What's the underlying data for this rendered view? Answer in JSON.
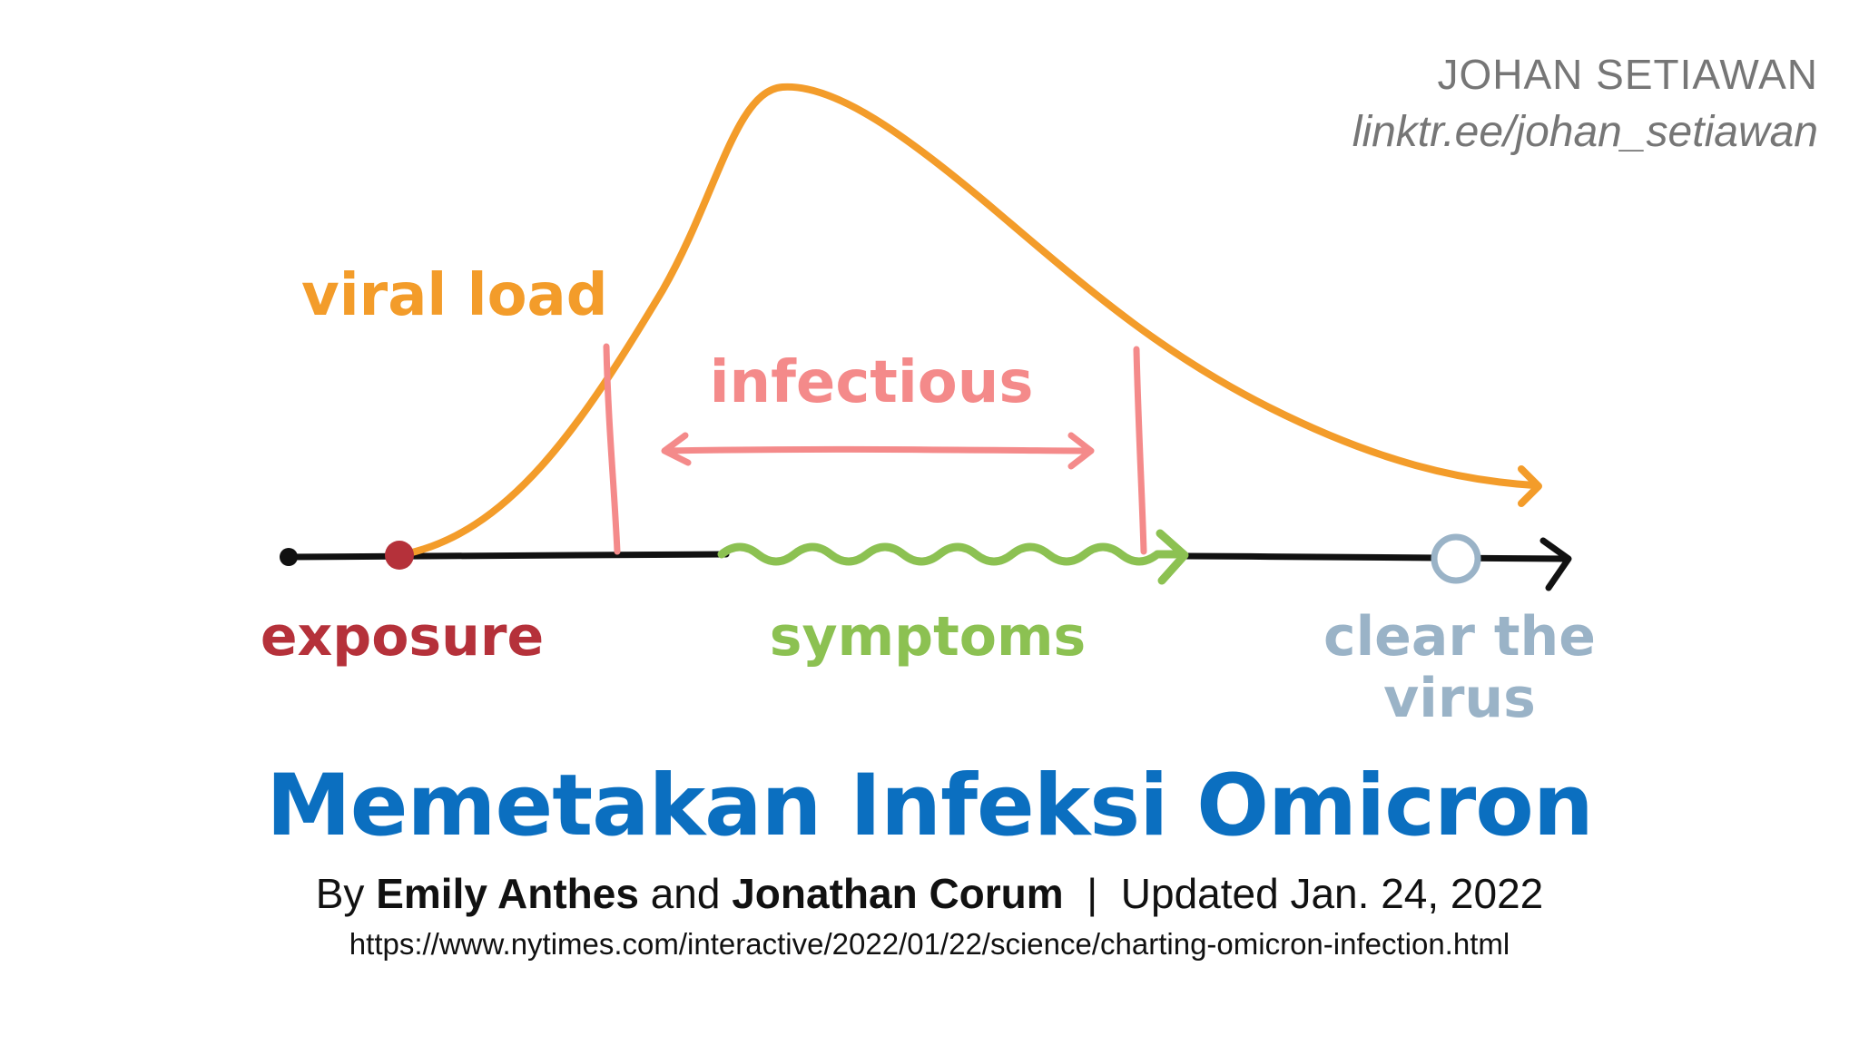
{
  "credit": {
    "name": "JOHAN SETIAWAN",
    "link": "linktr.ee/johan_setiawan"
  },
  "diagram": {
    "labels": {
      "viral_load": "viral load",
      "infectious": "infectious",
      "exposure": "exposure",
      "symptoms": "symptoms",
      "clear_line1": "clear the",
      "clear_line2": "virus"
    },
    "colors": {
      "viral_load": "#f39c2a",
      "infectious": "#f48a8a",
      "exposure": "#b5313a",
      "symptoms": "#8cc152",
      "clear": "#9ab3c7",
      "timeline": "#111111"
    }
  },
  "title": "Memetakan Infeksi Omicron",
  "byline": {
    "by": "By",
    "author1": "Emily Anthes",
    "and": "and",
    "author2": "Jonathan Corum",
    "separator": "|",
    "updated": "Updated Jan. 24, 2022"
  },
  "url": "https://www.nytimes.com/interactive/2022/01/22/science/charting-omicron-infection.html"
}
